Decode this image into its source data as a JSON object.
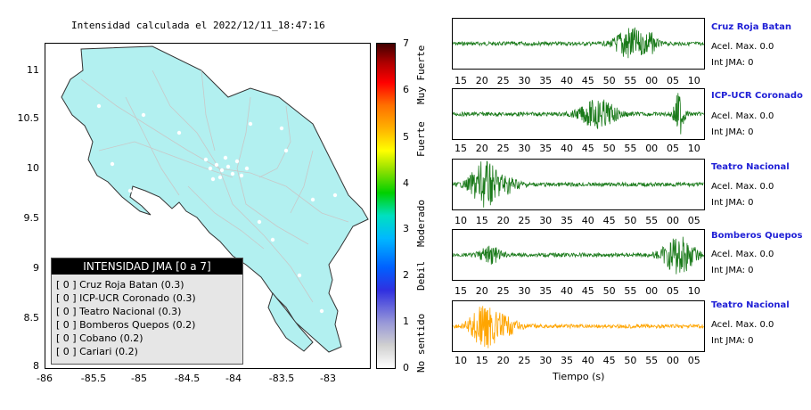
{
  "map": {
    "title": "Intensidad calculada el 2022/12/11_18:47:16",
    "y_ticks": [
      "11",
      "10.5",
      "10",
      "9.5",
      "9",
      "8.5",
      "8"
    ],
    "x_ticks": [
      "-86",
      "-85.5",
      "-85",
      "-84.5",
      "-84",
      "-83.5",
      "-83"
    ],
    "x_range": [
      -86,
      -82.7
    ],
    "y_range": [
      8,
      11.3
    ],
    "land_color": "#b2f0f0"
  },
  "colorbar": {
    "ticks": [
      "7",
      "6",
      "5",
      "4",
      "3",
      "2",
      "1",
      "0"
    ],
    "labels": [
      "Muy Fuerte",
      "Fuerte",
      "Moderado",
      "Debil",
      "No sentido"
    ]
  },
  "legend": {
    "header": "INTENSIDAD JMA [0 a 7]",
    "rows": [
      "[ 0 ]  Cruz Roja Batan (0.3)",
      "[ 0 ]  ICP-UCR Coronado (0.3)",
      "[ 0 ]  Teatro Nacional (0.3)",
      "[ 0 ]  Bomberos Quepos (0.2)",
      "[ 0 ]  Cobano (0.2)",
      "[ 0 ]  Cariari (0.2)"
    ]
  },
  "stations": [
    {
      "name": "Cruz Roja Batan",
      "acel": "Acel. Max. 0.0",
      "jma": "Int JMA: 0",
      "color": "#1a7a1a",
      "ticks": [
        "15",
        "20",
        "25",
        "30",
        "35",
        "40",
        "45",
        "50",
        "55",
        "00",
        "05",
        "10"
      ]
    },
    {
      "name": "ICP-UCR Coronado",
      "acel": "Acel. Max. 0.0",
      "jma": "Int JMA: 0",
      "color": "#1a7a1a",
      "ticks": [
        "15",
        "20",
        "25",
        "30",
        "35",
        "40",
        "45",
        "50",
        "55",
        "00",
        "05",
        "10"
      ]
    },
    {
      "name": "Teatro Nacional",
      "acel": "Acel. Max. 0.0",
      "jma": "Int JMA: 0",
      "color": "#1a7a1a",
      "ticks": [
        "10",
        "15",
        "20",
        "25",
        "30",
        "35",
        "40",
        "45",
        "50",
        "55",
        "00",
        "05"
      ]
    },
    {
      "name": "Bomberos Quepos",
      "acel": "Acel. Max. 0.0",
      "jma": "Int JMA: 0",
      "color": "#1a7a1a",
      "ticks": [
        "15",
        "20",
        "25",
        "30",
        "35",
        "40",
        "45",
        "50",
        "55",
        "00",
        "05",
        "10"
      ]
    },
    {
      "name": "Teatro Nacional",
      "acel": "Acel. Max. 0.0",
      "jma": "Int JMA: 0",
      "color": "#ffa500",
      "ticks": [
        "10",
        "15",
        "20",
        "25",
        "30",
        "35",
        "40",
        "45",
        "50",
        "55",
        "00",
        "05"
      ]
    }
  ],
  "time_axis_label": "Tiempo (s)"
}
